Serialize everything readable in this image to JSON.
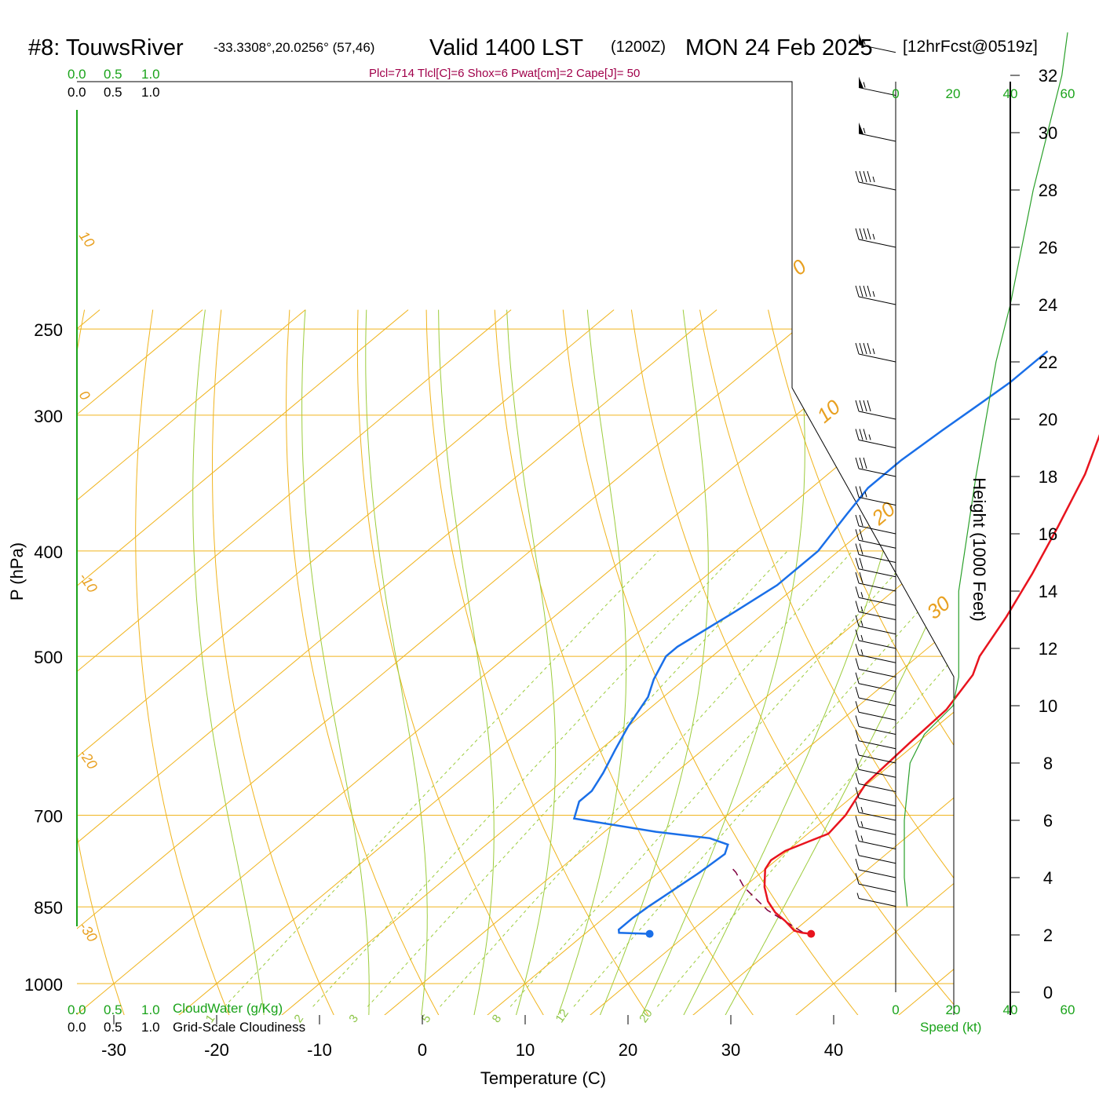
{
  "header": {
    "station": "#8: TouwsRiver",
    "coords": "-33.3308°,20.0256° (57,46)",
    "valid": "Valid 1400 LST",
    "utc": "(1200Z)",
    "date": "MON 24 Feb 2025",
    "forecast": "[12hrFcst@0519z]",
    "indices": "Plcl=714 Tlcl[C]=6 Shox=6 Pwat[cm]=2 Cape[J]= 50"
  },
  "colors": {
    "temperature": "#e8141e",
    "dewpoint": "#1a6fe8",
    "isotherm": "#f0b41e",
    "dry_adiabat": "#f0b41e",
    "moist_adiabat": "#9ccc3c",
    "mixing_ratio": "#9ccc3c",
    "parcel": "#800040",
    "height_curve": "#2aa02a",
    "cloud_axis": "#1aa31a"
  },
  "cloud_axes": {
    "top_green_ticks": [
      "0.0",
      "0.5",
      "1.0"
    ],
    "top_black_ticks": [
      "0.0",
      "0.5",
      "1.0"
    ],
    "bottom_green_ticks": [
      "0.0",
      "0.5",
      "1.0"
    ],
    "bottom_green_label": "CloudWater (g/Kg)",
    "bottom_black_ticks": [
      "0.0",
      "0.5",
      "1.0"
    ],
    "bottom_black_label": "Grid-Scale Cloudiness"
  },
  "speed_axis": {
    "ticks_green": [
      "0",
      "20",
      "40",
      "60"
    ],
    "label": "Speed (kt)"
  },
  "chart_data": {
    "type": "line",
    "title": "Skew-T log-P sounding",
    "xlabel": "Temperature (C)",
    "ylabel": "P (hPa)",
    "y2label": "Height (1000 Feet)",
    "x_ticks": [
      -30,
      -20,
      -10,
      0,
      10,
      20,
      30,
      40
    ],
    "y_ticks": [
      250,
      300,
      400,
      500,
      700,
      850,
      1000
    ],
    "y2_ticks": [
      0,
      2,
      4,
      6,
      8,
      10,
      12,
      14,
      16,
      18,
      20,
      22,
      24,
      26,
      28,
      30,
      32
    ],
    "isotherm_labels": [
      "-30",
      "-20",
      "-10",
      "0",
      "10",
      "20",
      "30"
    ],
    "dry_adiabat_labels": [
      "30",
      "20",
      "10",
      "0",
      "-10",
      "-20",
      "-30"
    ],
    "mixing_ratio_labels": [
      "1",
      "2",
      "3",
      "5",
      "8",
      "12",
      "20"
    ],
    "series": [
      {
        "name": "Temperature",
        "points": [
          [
            32.0,
            900
          ],
          [
            31.0,
            898
          ],
          [
            30.0,
            894
          ],
          [
            28.0,
            876
          ],
          [
            26.0,
            860
          ],
          [
            24.0,
            840
          ],
          [
            22.0,
            815
          ],
          [
            20.0,
            785
          ],
          [
            19.5,
            770
          ],
          [
            19.8,
            755
          ],
          [
            21.0,
            740
          ],
          [
            22.0,
            728
          ],
          [
            21.5,
            700
          ],
          [
            19.8,
            655
          ],
          [
            19.3,
            600
          ],
          [
            19.0,
            560
          ],
          [
            17.5,
            520
          ],
          [
            16.0,
            500
          ],
          [
            14.0,
            460
          ],
          [
            11.5,
            420
          ],
          [
            8.5,
            380
          ],
          [
            5.0,
            340
          ],
          [
            1.5,
            310
          ],
          [
            -2.0,
            285
          ],
          [
            -6.0,
            265
          ],
          [
            -8.0,
            260
          ]
        ]
      },
      {
        "name": "Dewpoint",
        "points": [
          [
            16.3,
            900
          ],
          [
            13.2,
            898
          ],
          [
            12.8,
            892
          ],
          [
            12.8,
            870
          ],
          [
            13.0,
            850
          ],
          [
            13.5,
            820
          ],
          [
            14.0,
            790
          ],
          [
            14.3,
            760
          ],
          [
            13.5,
            745
          ],
          [
            11.0,
            735
          ],
          [
            5.0,
            725
          ],
          [
            -4.5,
            705
          ],
          [
            -6.0,
            680
          ],
          [
            -6.0,
            665
          ],
          [
            -7.0,
            640
          ],
          [
            -8.5,
            610
          ],
          [
            -10.0,
            580
          ],
          [
            -11.5,
            545
          ],
          [
            -13.0,
            525
          ],
          [
            -14.5,
            500
          ],
          [
            -14.5,
            490
          ],
          [
            -13.0,
            455
          ],
          [
            -12.0,
            430
          ],
          [
            -12.0,
            400
          ],
          [
            -13.5,
            370
          ],
          [
            -14.5,
            350
          ],
          [
            -14.5,
            330
          ],
          [
            -14.0,
            310
          ],
          [
            -13.5,
            295
          ],
          [
            -13.0,
            280
          ],
          [
            -13.0,
            262
          ]
        ]
      },
      {
        "name": "Parcel",
        "points": [
          [
            31.0,
            897
          ],
          [
            25.0,
            856
          ],
          [
            20.0,
            815
          ],
          [
            17.5,
            790
          ],
          [
            16.5,
            782
          ]
        ]
      }
    ],
    "surface_points": {
      "temperature": [
        32.0,
        900
      ],
      "dewpoint": [
        16.3,
        900
      ]
    },
    "wind_levels_ft_k": [
      3,
      3.5,
      4,
      4.5,
      5,
      5.5,
      6,
      6.5,
      7,
      7.5,
      8,
      8.5,
      9,
      9.5,
      10,
      10.5,
      11,
      11.5,
      12,
      12.5,
      13,
      13.5,
      14,
      14.5,
      15,
      15.5,
      16,
      17,
      18,
      19,
      20,
      22,
      24,
      26,
      28,
      29.7,
      31.3,
      32.8
    ],
    "wind_speeds_kt": [
      8,
      10,
      12,
      14,
      15,
      15,
      15,
      14,
      14,
      13,
      12,
      12,
      12,
      12,
      12,
      13,
      14,
      15,
      16,
      17,
      18,
      19,
      20,
      20,
      20,
      20,
      22,
      25,
      30,
      35,
      40,
      45,
      45,
      45,
      45,
      55,
      55,
      55
    ],
    "height_profile_kft": [
      [
        3,
        4
      ],
      [
        4,
        3
      ],
      [
        6,
        3
      ],
      [
        8,
        5
      ],
      [
        9,
        10
      ],
      [
        10,
        20
      ],
      [
        11,
        22
      ],
      [
        14,
        22
      ],
      [
        18,
        28
      ],
      [
        22,
        35
      ],
      [
        24,
        40
      ],
      [
        28,
        48
      ],
      [
        32,
        58
      ],
      [
        33.5,
        60
      ]
    ]
  }
}
